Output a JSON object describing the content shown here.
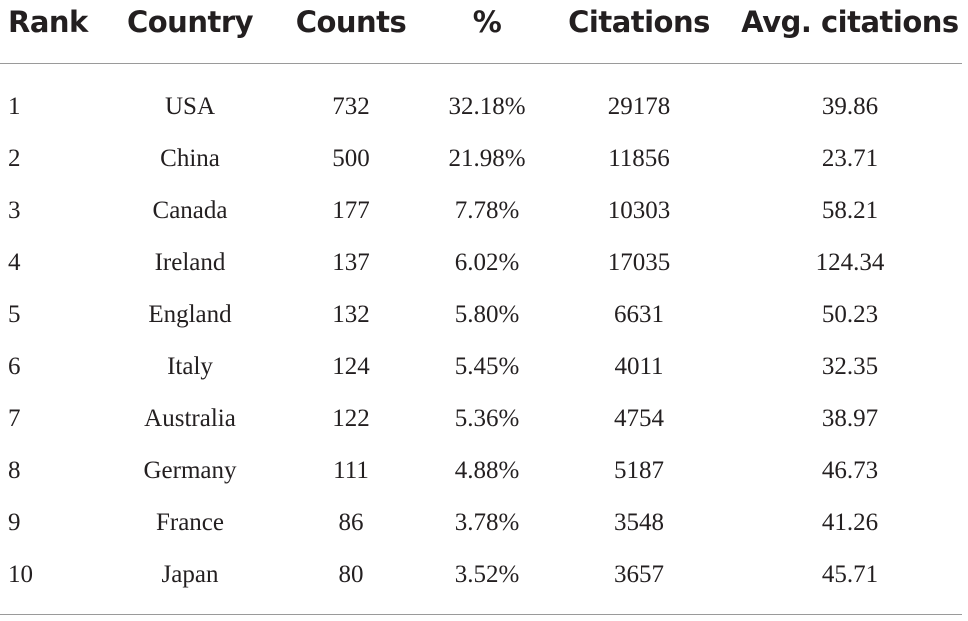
{
  "table": {
    "header": [
      "Rank",
      "Country",
      "Counts",
      "%",
      "Citations",
      "Avg. citations"
    ],
    "rows": [
      [
        "1",
        "USA",
        "732",
        "32.18%",
        "29178",
        "39.86"
      ],
      [
        "2",
        "China",
        "500",
        "21.98%",
        "11856",
        "23.71"
      ],
      [
        "3",
        "Canada",
        "177",
        "7.78%",
        "10303",
        "58.21"
      ],
      [
        "4",
        "Ireland",
        "137",
        "6.02%",
        "17035",
        "124.34"
      ],
      [
        "5",
        "England",
        "132",
        "5.80%",
        "6631",
        "50.23"
      ],
      [
        "6",
        "Italy",
        "124",
        "5.45%",
        "4011",
        "32.35"
      ],
      [
        "7",
        "Australia",
        "122",
        "5.36%",
        "4754",
        "38.97"
      ],
      [
        "8",
        "Germany",
        "111",
        "4.88%",
        "5187",
        "46.73"
      ],
      [
        "9",
        "France",
        "86",
        "3.78%",
        "3548",
        "41.26"
      ],
      [
        "10",
        "Japan",
        "80",
        "3.52%",
        "3657",
        "45.71"
      ]
    ]
  }
}
